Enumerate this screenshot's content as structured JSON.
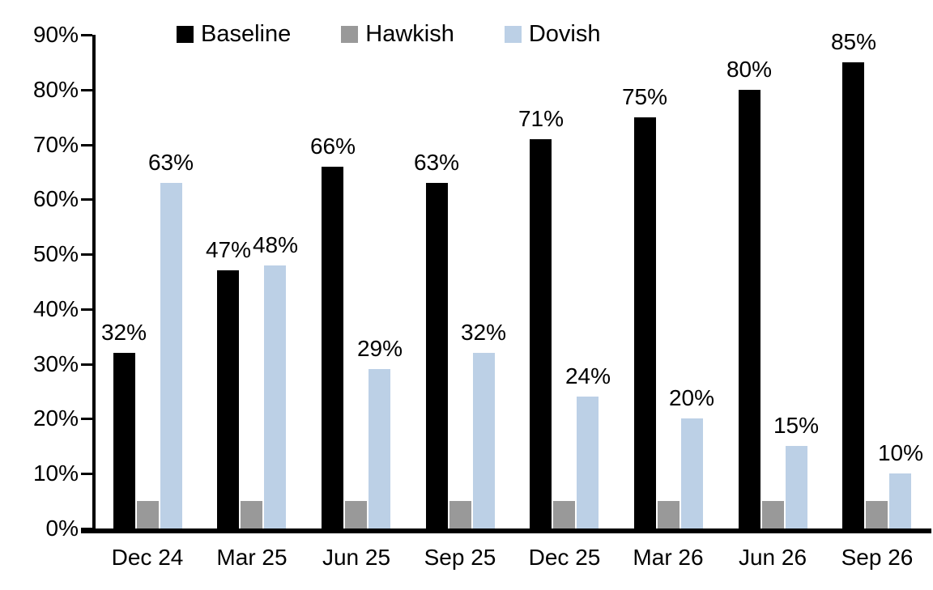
{
  "chart_data": {
    "type": "bar",
    "title": "",
    "xlabel": "",
    "ylabel": "",
    "categories": [
      "Dec 24",
      "Mar 25",
      "Jun 25",
      "Sep 25",
      "Dec 25",
      "Mar 26",
      "Jun 26",
      "Sep 26"
    ],
    "series": [
      {
        "name": "Baseline",
        "color": "#000000",
        "values": [
          32,
          47,
          66,
          63,
          71,
          75,
          80,
          85
        ],
        "labels": [
          "32%",
          "47%",
          "66%",
          "63%",
          "71%",
          "75%",
          "80%",
          "85%"
        ]
      },
      {
        "name": "Hawkish",
        "color": "#999999",
        "values": [
          5,
          5,
          5,
          5,
          5,
          5,
          5,
          5
        ],
        "labels": null
      },
      {
        "name": "Dovish",
        "color": "#bcd0e6",
        "values": [
          63,
          48,
          29,
          32,
          24,
          20,
          15,
          10
        ],
        "labels": [
          "63%",
          "48%",
          "29%",
          "32%",
          "24%",
          "20%",
          "15%",
          "10%"
        ]
      }
    ],
    "ylim": [
      0,
      90
    ],
    "yticks": [
      "0%",
      "10%",
      "20%",
      "30%",
      "40%",
      "50%",
      "60%",
      "70%",
      "80%",
      "90%"
    ],
    "ytick_values": [
      0,
      10,
      20,
      30,
      40,
      50,
      60,
      70,
      80,
      90
    ],
    "legend_position": "top",
    "grid": false,
    "axis_color": "#000000",
    "background_color": "#ffffff"
  }
}
